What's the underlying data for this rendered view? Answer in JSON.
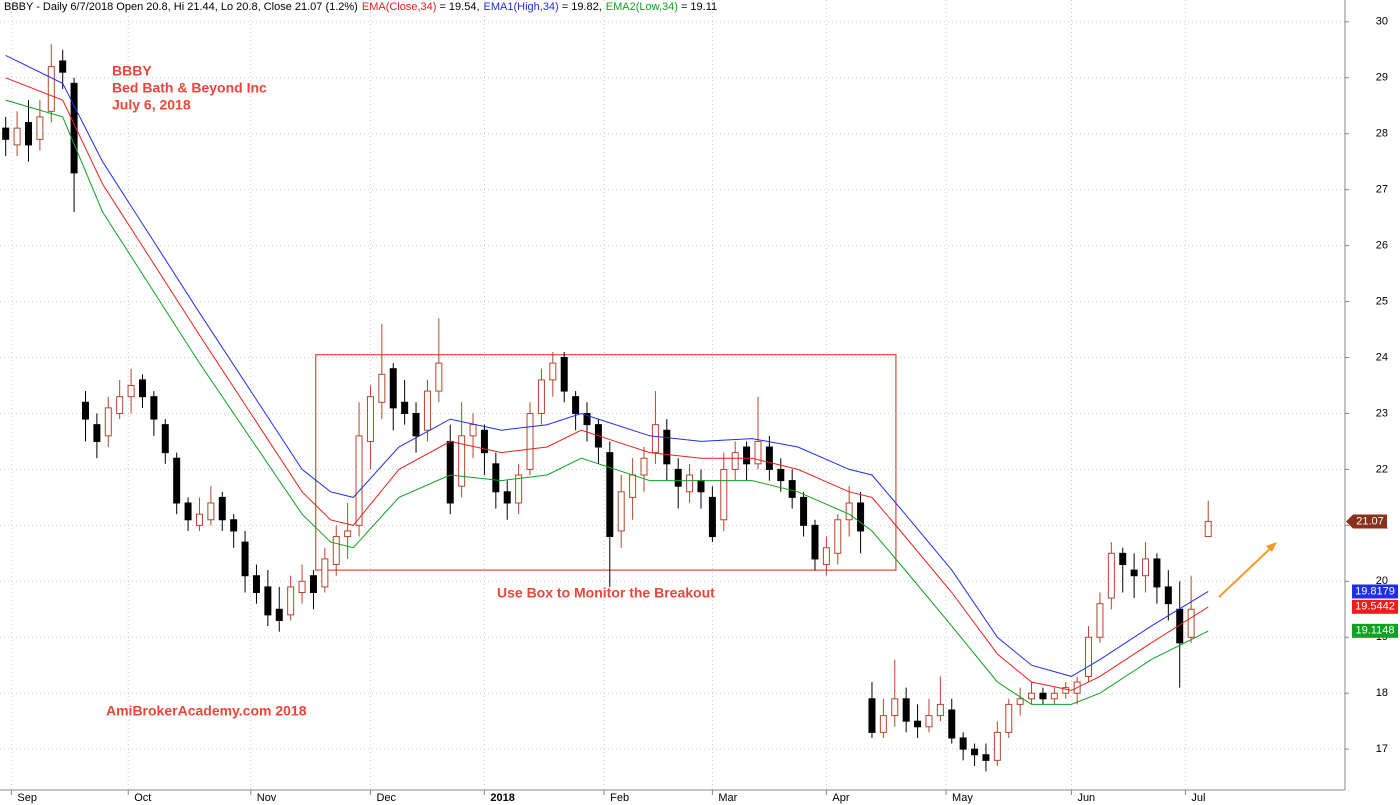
{
  "chart_data": {
    "type": "candlestick",
    "header": "BBBY - Daily 6/7/2018 Open 20.8, Hi 21.44, Lo 20.8, Close 21.07 (1.2%)",
    "annotations": [
      "BBBY",
      "Bed Bath & Beyond Inc",
      "July 6, 2018"
    ],
    "box_label": "Use Box to Monitor the Breakout",
    "watermark": "AmiBrokerAcademy.com  2018",
    "box": {
      "x": [
        54.4,
        156.2
      ],
      "y": [
        20.2,
        24.05
      ]
    },
    "xlim": [
      -1,
      235
    ],
    "ylim": [
      16.27,
      30.39
    ],
    "yticks": [
      17,
      18,
      19,
      20,
      21,
      22,
      23,
      24,
      25,
      26,
      27,
      28,
      29,
      30
    ],
    "xticks": [
      {
        "value": 1,
        "label": "Sep"
      },
      {
        "value": 21.5,
        "label": "Oct"
      },
      {
        "value": 43,
        "label": "Nov"
      },
      {
        "value": 64,
        "label": "Dec"
      },
      {
        "value": 84,
        "label": "2018"
      },
      {
        "value": 105,
        "label": "Feb"
      },
      {
        "value": 124,
        "label": "Mar"
      },
      {
        "value": 144,
        "label": "Apr"
      },
      {
        "value": 165,
        "label": "May"
      },
      {
        "value": 187,
        "label": "Jun"
      },
      {
        "value": 207,
        "label": "Jul"
      }
    ],
    "grid": true,
    "up_color": "#b4462c",
    "down_color": "#000000",
    "x": [
      0,
      2,
      4,
      6,
      8,
      10,
      12,
      14,
      16,
      18,
      20,
      22,
      24,
      26,
      28,
      30,
      32,
      34,
      36,
      38,
      40,
      42,
      44,
      46,
      48,
      50,
      52,
      54,
      56,
      58,
      60,
      62,
      64,
      66,
      68,
      70,
      72,
      74,
      76,
      78,
      80,
      82,
      84,
      86,
      88,
      90,
      92,
      94,
      96,
      98,
      100,
      102,
      104,
      106,
      108,
      110,
      112,
      114,
      116,
      118,
      120,
      122,
      124,
      126,
      128,
      130,
      132,
      134,
      136,
      138,
      140,
      142,
      144,
      146,
      148,
      150,
      152,
      154,
      156,
      158,
      160,
      162,
      164,
      166,
      168,
      170,
      172,
      174,
      176,
      178,
      180,
      182,
      184,
      186,
      188,
      190,
      192,
      194,
      196,
      198,
      200,
      202,
      204,
      206,
      208,
      211
    ],
    "open": [
      28.1,
      27.8,
      28.2,
      27.9,
      28.4,
      29.3,
      28.9,
      23.2,
      22.8,
      22.6,
      23.0,
      23.3,
      23.6,
      23.3,
      22.8,
      22.2,
      21.4,
      21.0,
      21.1,
      21.5,
      21.1,
      20.7,
      20.1,
      19.9,
      19.5,
      19.4,
      19.8,
      20.1,
      19.9,
      20.3,
      20.8,
      21.0,
      22.5,
      23.2,
      23.8,
      23.2,
      23.0,
      22.7,
      23.4,
      22.5,
      21.7,
      22.6,
      22.7,
      22.1,
      21.6,
      21.4,
      22.0,
      23.0,
      23.6,
      24.0,
      23.3,
      23.0,
      22.8,
      22.3,
      20.9,
      21.5,
      21.9,
      22.3,
      22.7,
      22.0,
      21.6,
      21.8,
      21.5,
      21.1,
      22.0,
      22.4,
      22.1,
      22.4,
      22.0,
      21.8,
      21.5,
      21.0,
      20.3,
      20.5,
      21.1,
      21.4,
      17.9,
      17.3,
      17.6,
      17.9,
      17.5,
      17.4,
      17.6,
      17.7,
      17.2,
      17.0,
      16.9,
      16.8,
      17.3,
      17.8,
      17.9,
      18.0,
      17.9,
      18.0,
      18.0,
      18.3,
      19.0,
      19.7,
      20.5,
      20.2,
      20.1,
      20.4,
      19.9,
      19.5,
      19.0,
      20.8
    ],
    "high": [
      28.3,
      28.4,
      28.6,
      28.6,
      29.6,
      29.5,
      29.0,
      23.4,
      23.0,
      23.3,
      23.6,
      23.8,
      23.7,
      23.4,
      22.9,
      22.3,
      21.5,
      21.5,
      21.7,
      21.6,
      21.2,
      20.9,
      20.3,
      20.2,
      19.9,
      20.1,
      20.3,
      20.2,
      20.6,
      21.0,
      21.4,
      23.2,
      23.5,
      24.6,
      23.9,
      23.6,
      23.2,
      23.6,
      24.7,
      22.8,
      23.2,
      23.0,
      22.8,
      22.3,
      21.8,
      22.1,
      23.2,
      23.8,
      24.1,
      24.1,
      23.4,
      23.2,
      22.9,
      22.5,
      21.9,
      22.2,
      22.4,
      23.4,
      22.9,
      22.2,
      22.1,
      22.0,
      21.7,
      22.3,
      22.5,
      22.5,
      23.3,
      22.6,
      22.2,
      22.0,
      21.6,
      21.1,
      20.8,
      21.2,
      21.7,
      21.6,
      18.2,
      17.9,
      18.6,
      18.1,
      17.8,
      17.9,
      18.3,
      17.9,
      17.3,
      17.1,
      17.1,
      17.5,
      17.9,
      18.1,
      18.2,
      18.1,
      18.1,
      18.2,
      18.3,
      19.2,
      19.8,
      20.7,
      20.6,
      20.5,
      20.7,
      20.5,
      20.2,
      20.0,
      20.1,
      21.44
    ],
    "low": [
      27.6,
      27.6,
      27.5,
      27.7,
      28.2,
      28.8,
      26.6,
      22.5,
      22.2,
      22.4,
      22.9,
      23.0,
      23.1,
      22.6,
      22.1,
      21.2,
      20.9,
      20.9,
      21.0,
      20.9,
      20.6,
      19.8,
      19.6,
      19.2,
      19.1,
      19.3,
      19.6,
      19.5,
      19.8,
      20.1,
      20.4,
      20.8,
      22.0,
      22.9,
      22.7,
      22.8,
      22.3,
      22.5,
      23.2,
      21.2,
      21.5,
      22.2,
      21.9,
      21.3,
      21.1,
      21.2,
      21.9,
      22.8,
      23.3,
      23.2,
      22.7,
      22.5,
      22.1,
      19.9,
      20.6,
      21.1,
      21.6,
      22.1,
      21.8,
      21.3,
      21.4,
      21.3,
      20.7,
      20.9,
      21.8,
      21.8,
      22.0,
      21.8,
      21.6,
      21.3,
      20.8,
      20.2,
      20.1,
      20.3,
      20.8,
      20.5,
      17.2,
      17.2,
      17.4,
      17.3,
      17.2,
      17.3,
      17.5,
      17.1,
      16.8,
      16.7,
      16.6,
      16.7,
      17.2,
      17.6,
      17.8,
      17.8,
      17.8,
      17.9,
      17.8,
      18.2,
      18.9,
      19.5,
      19.8,
      19.7,
      19.8,
      19.6,
      19.3,
      18.1,
      18.9,
      20.8
    ],
    "close": [
      27.9,
      28.1,
      27.8,
      28.3,
      29.2,
      29.1,
      27.3,
      22.9,
      22.5,
      23.1,
      23.3,
      23.5,
      23.3,
      22.9,
      22.3,
      21.4,
      21.1,
      21.2,
      21.4,
      21.1,
      20.9,
      20.1,
      19.8,
      19.4,
      19.3,
      19.9,
      20.0,
      19.8,
      20.4,
      20.8,
      20.9,
      22.6,
      23.3,
      23.7,
      23.1,
      23.0,
      22.6,
      23.4,
      23.9,
      21.4,
      22.6,
      22.8,
      22.3,
      21.6,
      21.4,
      21.9,
      23.0,
      23.6,
      23.9,
      23.4,
      23.0,
      22.8,
      22.4,
      20.8,
      21.6,
      21.9,
      22.2,
      22.8,
      22.1,
      21.7,
      21.9,
      21.6,
      20.8,
      22.0,
      22.3,
      22.1,
      22.5,
      22.0,
      21.8,
      21.5,
      21.0,
      20.4,
      20.6,
      21.1,
      21.4,
      20.9,
      17.3,
      17.6,
      17.9,
      17.5,
      17.4,
      17.6,
      17.8,
      17.2,
      17.0,
      16.9,
      16.8,
      17.3,
      17.8,
      17.9,
      18.0,
      17.9,
      18.0,
      18.1,
      18.2,
      19.0,
      19.6,
      20.5,
      20.3,
      20.1,
      20.4,
      19.9,
      19.6,
      18.9,
      19.5,
      21.07
    ],
    "close_tag_color": "#8b2e1a",
    "series": [
      {
        "name": "EMA(Close,34)",
        "legend": "= 19.54,",
        "color": "#e8201c",
        "tag": 19.5442,
        "x": [
          0,
          10,
          17,
          34,
          52,
          57,
          61,
          69,
          78,
          87,
          95,
          101,
          104,
          113,
          122,
          131,
          139,
          148,
          152,
          157,
          166,
          174,
          180,
          187,
          192,
          201,
          211
        ],
        "values": [
          29.0,
          28.6,
          27.1,
          24.4,
          21.6,
          21.1,
          21.0,
          22.0,
          22.5,
          22.3,
          22.4,
          22.7,
          22.6,
          22.3,
          22.2,
          22.2,
          22.0,
          21.6,
          21.5,
          20.9,
          19.8,
          18.7,
          18.2,
          18.05,
          18.3,
          18.9,
          19.54
        ]
      },
      {
        "name": "EMA1(High,34)",
        "legend": "= 19.82,",
        "color": "#1f2ee8",
        "tag": 19.8179,
        "x": [
          0,
          10,
          17,
          34,
          52,
          57,
          61,
          69,
          78,
          87,
          95,
          101,
          104,
          113,
          122,
          131,
          139,
          148,
          152,
          157,
          166,
          174,
          180,
          187,
          192,
          201,
          211
        ],
        "values": [
          29.4,
          28.9,
          27.5,
          24.8,
          22.0,
          21.6,
          21.5,
          22.4,
          22.9,
          22.7,
          22.8,
          23.0,
          22.9,
          22.6,
          22.5,
          22.55,
          22.4,
          22.0,
          21.9,
          21.3,
          20.2,
          19.0,
          18.5,
          18.3,
          18.6,
          19.2,
          19.82
        ]
      },
      {
        "name": "EMA2(Low,34)",
        "legend": "= 19.11",
        "color": "#11a020",
        "tag": 19.1148,
        "x": [
          0,
          10,
          17,
          34,
          52,
          57,
          61,
          69,
          78,
          87,
          95,
          101,
          104,
          113,
          122,
          131,
          139,
          148,
          152,
          157,
          166,
          174,
          180,
          187,
          192,
          201,
          211
        ],
        "values": [
          28.6,
          28.3,
          26.6,
          23.9,
          21.2,
          20.7,
          20.6,
          21.5,
          21.9,
          21.8,
          21.9,
          22.2,
          22.1,
          21.8,
          21.8,
          21.8,
          21.6,
          21.2,
          20.9,
          20.3,
          19.2,
          18.2,
          17.8,
          17.8,
          18.0,
          18.6,
          19.11
        ]
      }
    ]
  }
}
